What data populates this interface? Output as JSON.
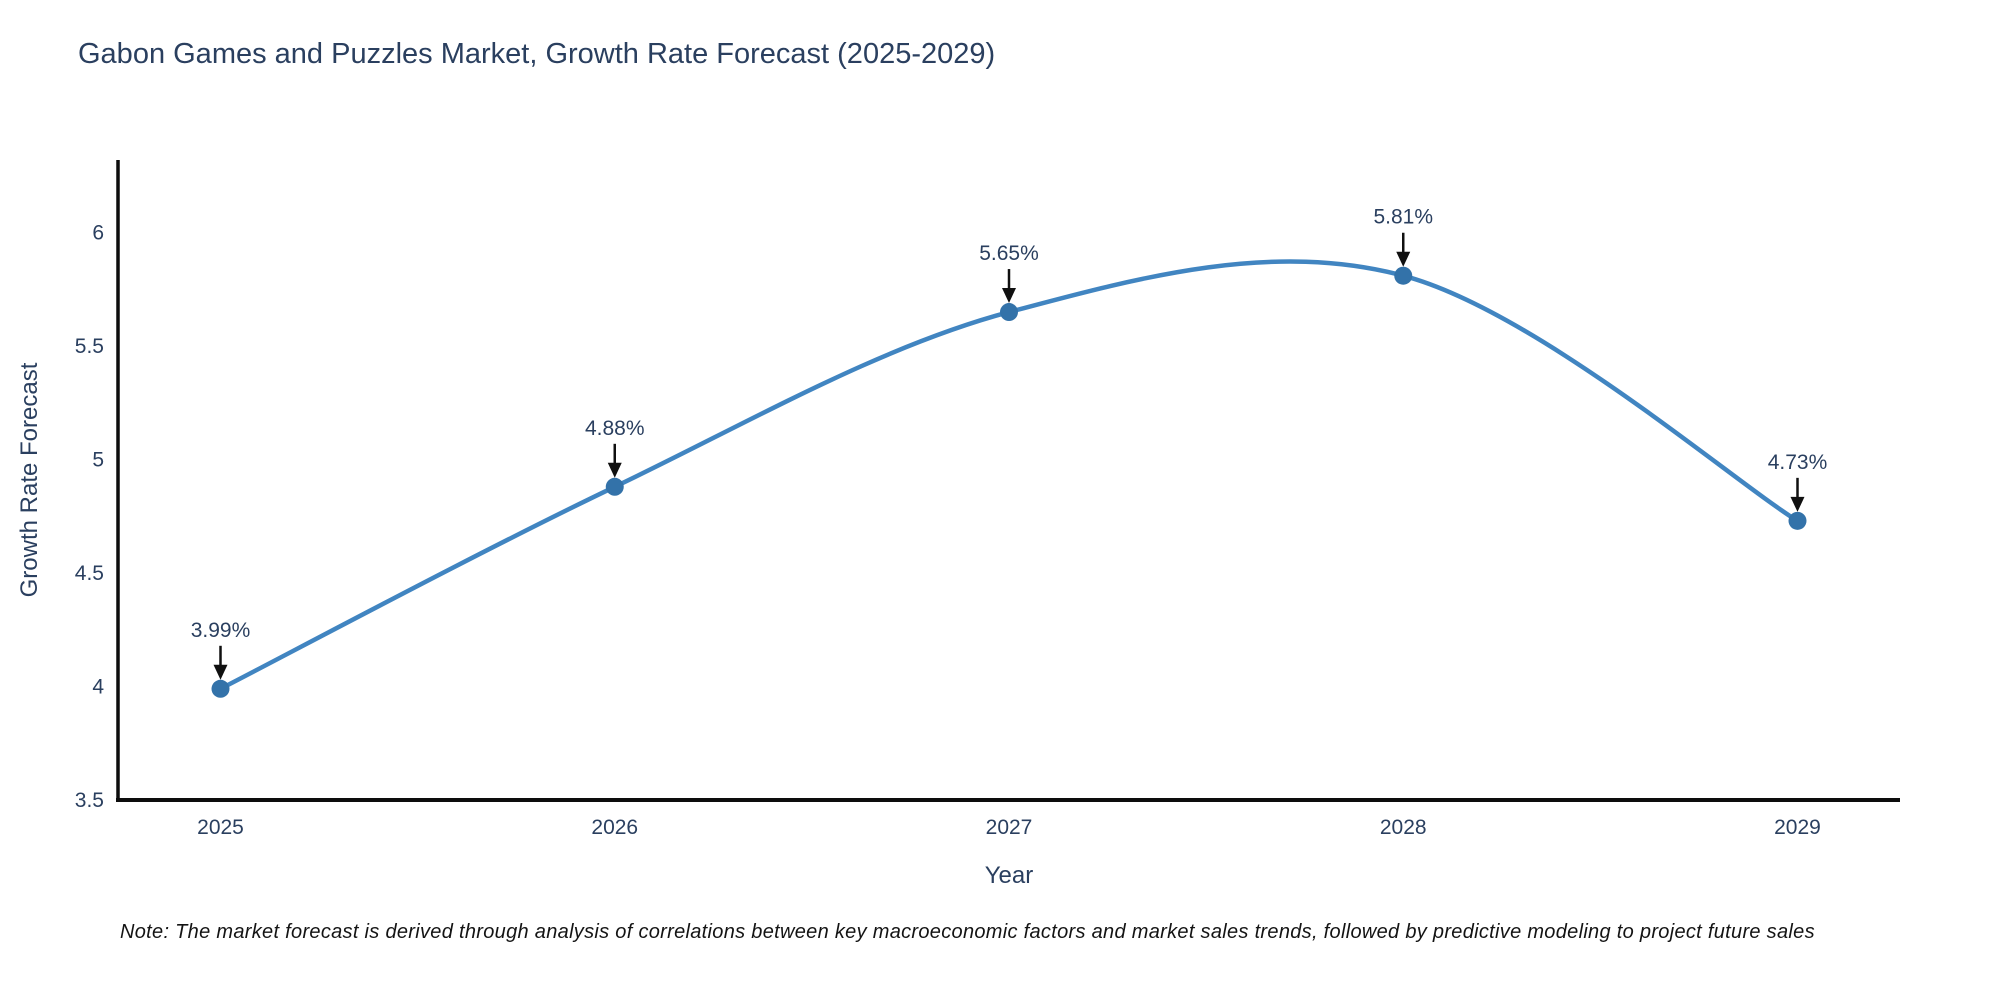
{
  "chart": {
    "title": "Gabon Games and Puzzles Market, Growth Rate Forecast (2025-2029)",
    "note": "Note: The market forecast is derived through analysis of correlations between key macroeconomic factors and market sales trends, followed by predictive modeling to project future sales"
  },
  "chart_data": {
    "type": "line",
    "title": "Gabon Games and Puzzles Market, Growth Rate Forecast (2025-2029)",
    "xlabel": "Year",
    "ylabel": "Growth Rate Forecast",
    "x": [
      2025,
      2026,
      2027,
      2028,
      2029
    ],
    "values": [
      3.99,
      4.88,
      5.65,
      5.81,
      4.73
    ],
    "point_labels": [
      "3.99%",
      "4.88%",
      "5.65%",
      "5.81%",
      "4.73%"
    ],
    "xtick_labels": [
      "2025",
      "2026",
      "2027",
      "2028",
      "2029"
    ],
    "yticks": [
      3.5,
      4,
      4.5,
      5,
      5.5,
      6
    ],
    "ytick_labels": [
      "3.5",
      "4",
      "4.5",
      "5",
      "5.5",
      "6"
    ],
    "xlim": [
      2024.74,
      2029.26
    ],
    "ylim": [
      3.5,
      6.32
    ],
    "grid": false,
    "legend": "none",
    "line_shape": "spline",
    "colors": {
      "line": "#4185c1",
      "marker": "#3372a9",
      "arrow": "#101010",
      "axis": "#0d0d0d",
      "text": "#2a3f5f"
    }
  }
}
